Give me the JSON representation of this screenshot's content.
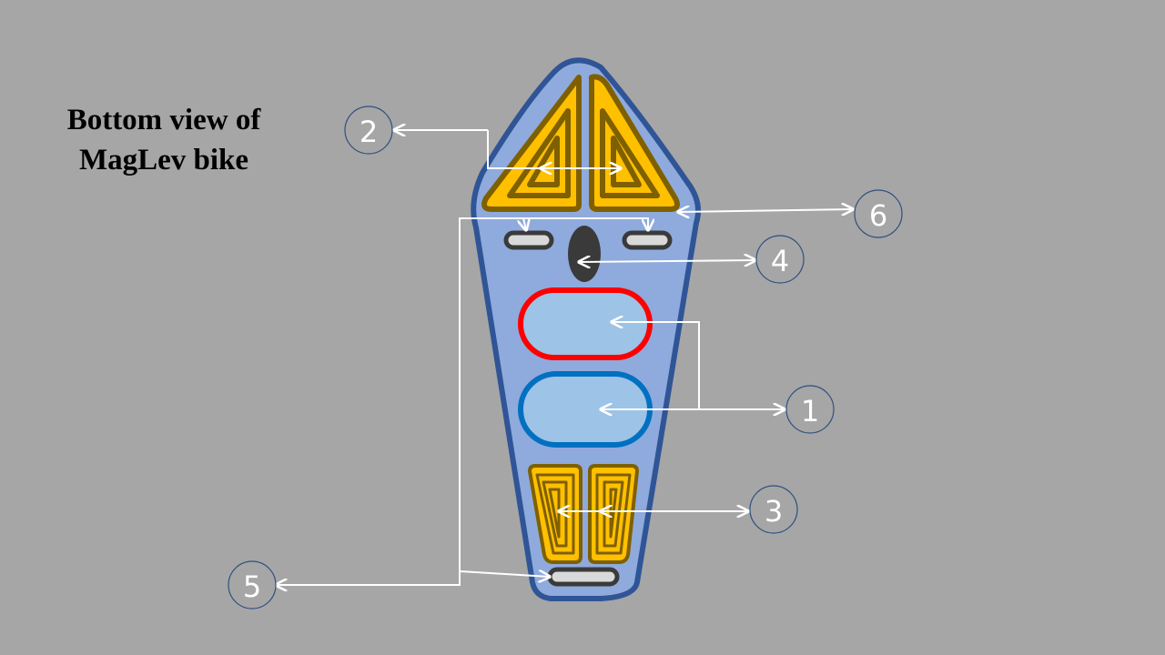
{
  "title": {
    "line1": "Bottom  view of",
    "line2": "MagLev bike"
  },
  "callouts": [
    "1",
    "2",
    "3",
    "4",
    "5",
    "6"
  ],
  "colors": {
    "background": "#a6a6a6",
    "bike_body": "#8faadc",
    "bike_outline": "#2f5597",
    "coil_fill": "#ffc000",
    "coil_outline": "#7f6000",
    "magnet_red": "#ff0000",
    "magnet_blue": "#0070c0",
    "magnet_fill": "#9dc3e6",
    "leader_line": "#ffffff"
  }
}
